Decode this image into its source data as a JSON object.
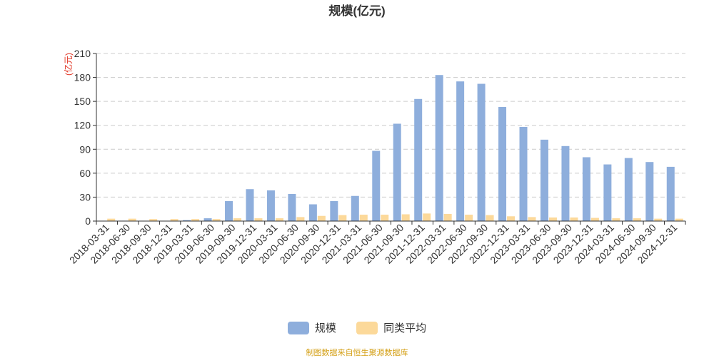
{
  "chart_data": {
    "type": "bar",
    "title": "规模(亿元)",
    "ylabel": "(亿元)",
    "xlabel": "",
    "ylim": [
      0,
      210
    ],
    "yticks": [
      0,
      30,
      60,
      90,
      120,
      150,
      180,
      210
    ],
    "grid": true,
    "legend_position": "bottom",
    "categories": [
      "2018-03-31",
      "2018-06-30",
      "2018-09-30",
      "2018-12-31",
      "2019-03-31",
      "2019-06-30",
      "2019-09-30",
      "2019-12-31",
      "2020-03-31",
      "2020-06-30",
      "2020-09-30",
      "2020-12-31",
      "2021-03-31",
      "2021-06-30",
      "2021-09-30",
      "2021-12-31",
      "2022-03-31",
      "2022-06-30",
      "2022-09-30",
      "2022-12-31",
      "2023-03-31",
      "2023-06-30",
      "2023-09-30",
      "2023-12-31",
      "2024-03-31",
      "2024-06-30",
      "2024-09-30",
      "2024-12-31"
    ],
    "series": [
      {
        "name": "规模",
        "color": "#8eaedc",
        "values": [
          0.3,
          0.5,
          0.2,
          0.3,
          1.2,
          3.5,
          25,
          40,
          38.5,
          34,
          21,
          25,
          31.5,
          88,
          122,
          153,
          183,
          175,
          172,
          143,
          118,
          102,
          94,
          80,
          71,
          79,
          74,
          68
        ]
      },
      {
        "name": "同类平均",
        "color": "#fcd99a",
        "values": [
          3,
          3,
          2.5,
          2.5,
          2.5,
          2.5,
          3.5,
          3.5,
          3.5,
          5,
          6.5,
          7.5,
          8,
          8,
          8.5,
          9.5,
          9,
          8,
          7.5,
          6,
          5,
          4.5,
          4.5,
          4,
          3.5,
          3.5,
          3,
          3
        ]
      }
    ]
  },
  "legend": {
    "items": [
      "规模",
      "同类平均"
    ]
  },
  "source_text": "制图数据来自恒生聚源数据库"
}
